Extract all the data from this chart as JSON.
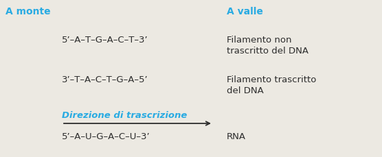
{
  "background_color": "#ece9e2",
  "cyan_color": "#29abe2",
  "dark_color": "#2d2d2d",
  "fig_width": 5.56,
  "fig_height": 2.29,
  "dpi": 100,
  "a_monte": "A monte",
  "a_valle": "A valle",
  "strand1_label": "5’–A–T–G–A–C–T–3’",
  "strand1_desc1": "Filamento non",
  "strand1_desc2": "trascritto del DNA",
  "strand2_label": "3’–T–A–C–T–G–A–5’",
  "strand2_desc1": "Filamento trascritto",
  "strand2_desc2": "del DNA",
  "direction_label": "Direzione di trascrizione",
  "rna_label": "5’–A–U–G–A–C–U–3’",
  "rna_desc": "RNA",
  "fs_header": 10,
  "fs_strand": 9.5,
  "fs_desc": 9.5,
  "fs_dir": 9.5
}
